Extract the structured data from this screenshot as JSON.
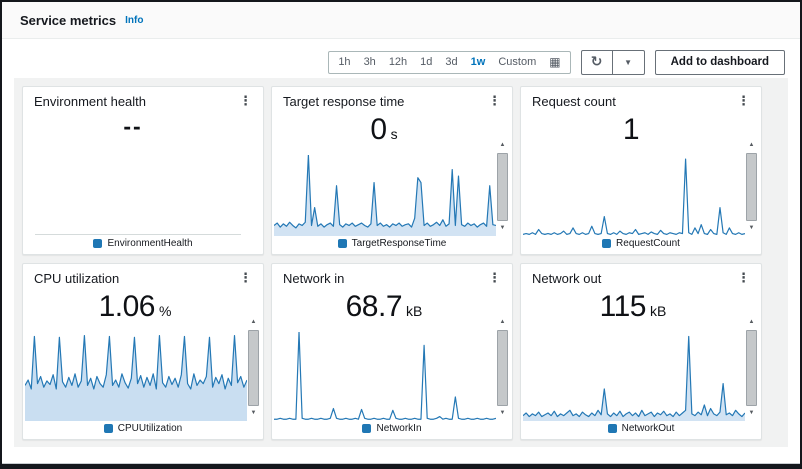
{
  "header": {
    "title": "Service metrics",
    "info_label": "Info"
  },
  "toolbar": {
    "time_ranges": [
      {
        "label": "1h",
        "selected": false
      },
      {
        "label": "3h",
        "selected": false
      },
      {
        "label": "12h",
        "selected": false
      },
      {
        "label": "1d",
        "selected": false
      },
      {
        "label": "3d",
        "selected": false
      },
      {
        "label": "1w",
        "selected": true
      },
      {
        "label": "Custom",
        "selected": false
      }
    ],
    "add_to_dashboard_label": "Add to dashboard"
  },
  "icons": {
    "menu": "⋮",
    "refresh": "↻",
    "caret_down": "▼",
    "calendar": "▦",
    "scroll_up": "▲",
    "scroll_down": "▼"
  },
  "colors": {
    "accent": "#0073bb",
    "chart_line": "#2478b5",
    "chart_fill_light": "#d2e3f3",
    "chart_fill_cpu": "#c9def1",
    "legend_dot": "#1f77b4",
    "panel_bg": "#f1f2f2"
  },
  "cards": [
    {
      "title": "Environment health",
      "value": "--",
      "unit": "",
      "legend": "EnvironmentHealth",
      "chart": {
        "type": "none",
        "series": "EnvironmentHealth",
        "color": "#2478b5",
        "fill": null,
        "values": []
      }
    },
    {
      "title": "Target response time",
      "value": "0",
      "unit": "s",
      "legend": "TargetResponseTime",
      "chart": {
        "type": "area",
        "series": "TargetResponseTime",
        "color": "#2478b5",
        "fill": "#d2e3f3",
        "y_scale": "percent-of-chart-height",
        "values": [
          13,
          16,
          11,
          15,
          12,
          17,
          13,
          10,
          15,
          13,
          17,
          100,
          13,
          35,
          12,
          15,
          11,
          14,
          16,
          12,
          62,
          14,
          11,
          15,
          13,
          16,
          12,
          14,
          16,
          13,
          11,
          15,
          66,
          13,
          16,
          12,
          14,
          11,
          15,
          13,
          16,
          12,
          14,
          15,
          11,
          22,
          72,
          66,
          13,
          16,
          12,
          14,
          17,
          13,
          20,
          12,
          15,
          82,
          13,
          74,
          14,
          12,
          16,
          13,
          15,
          11,
          14,
          16,
          12,
          62,
          14,
          13
        ]
      }
    },
    {
      "title": "Request count",
      "value": "1",
      "unit": "",
      "legend": "RequestCount",
      "chart": {
        "type": "line",
        "series": "RequestCount",
        "color": "#2478b5",
        "fill": null,
        "y_scale": "percent-of-chart-height",
        "values": [
          2,
          3,
          2,
          4,
          2,
          8,
          3,
          2,
          3,
          2,
          4,
          2,
          3,
          6,
          2,
          3,
          10,
          3,
          2,
          4,
          2,
          3,
          12,
          3,
          2,
          3,
          24,
          3,
          2,
          4,
          2,
          6,
          3,
          2,
          4,
          3,
          8,
          2,
          3,
          4,
          2,
          5,
          3,
          2,
          7,
          3,
          2,
          4,
          3,
          2,
          4,
          3,
          95,
          4,
          2,
          10,
          3,
          14,
          3,
          2,
          8,
          3,
          2,
          35,
          4,
          2,
          10,
          3,
          2,
          4,
          2,
          3
        ]
      }
    },
    {
      "title": "CPU utilization",
      "value": "1.06",
      "unit": "%",
      "legend": "CPUUtilization",
      "chart": {
        "type": "area",
        "series": "CPUUtilization",
        "color": "#2478b5",
        "fill": "#c9def1",
        "y_scale": "percent-of-chart-height",
        "values": [
          40,
          46,
          36,
          95,
          42,
          50,
          38,
          45,
          41,
          52,
          36,
          94,
          44,
          38,
          49,
          40,
          53,
          38,
          45,
          96,
          40,
          48,
          36,
          50,
          42,
          38,
          52,
          95,
          40,
          46,
          38,
          53,
          43,
          37,
          48,
          94,
          42,
          51,
          38,
          49,
          40,
          53,
          36,
          96,
          43,
          38,
          50,
          41,
          48,
          38,
          52,
          95,
          42,
          36,
          53,
          40,
          46,
          42,
          50,
          94,
          38,
          49,
          42,
          52,
          36,
          48,
          40,
          96,
          43,
          50,
          38,
          46
        ]
      }
    },
    {
      "title": "Network in",
      "value": "68.7",
      "unit": "kB",
      "legend": "NetworkIn",
      "chart": {
        "type": "line",
        "series": "NetworkIn",
        "color": "#2478b5",
        "fill": null,
        "y_scale": "percent-of-chart-height",
        "values": [
          2,
          2,
          3,
          2,
          2,
          3,
          2,
          2,
          100,
          3,
          2,
          2,
          3,
          2,
          2,
          3,
          2,
          2,
          3,
          14,
          3,
          2,
          2,
          3,
          2,
          2,
          3,
          2,
          13,
          3,
          2,
          2,
          3,
          2,
          2,
          3,
          2,
          2,
          12,
          3,
          2,
          2,
          3,
          2,
          2,
          3,
          2,
          2,
          85,
          3,
          2,
          2,
          3,
          5,
          2,
          3,
          2,
          2,
          27,
          3,
          2,
          2,
          3,
          2,
          2,
          3,
          2,
          2,
          3,
          2,
          2,
          3
        ]
      }
    },
    {
      "title": "Network out",
      "value": "115",
      "unit": "kB",
      "legend": "NetworkOut",
      "chart": {
        "type": "area",
        "series": "NetworkOut",
        "color": "#2478b5",
        "fill": "#d2e3f3",
        "y_scale": "percent-of-chart-height",
        "values": [
          6,
          9,
          5,
          8,
          6,
          10,
          5,
          7,
          9,
          6,
          11,
          5,
          8,
          6,
          9,
          12,
          6,
          8,
          5,
          10,
          7,
          5,
          9,
          6,
          12,
          7,
          36,
          8,
          5,
          9,
          6,
          11,
          5,
          8,
          10,
          6,
          9,
          5,
          12,
          6,
          8,
          10,
          5,
          9,
          7,
          11,
          6,
          8,
          5,
          10,
          6,
          9,
          12,
          95,
          8,
          6,
          10,
          7,
          18,
          6,
          14,
          8,
          6,
          10,
          42,
          7,
          9,
          6,
          12,
          8,
          5,
          9
        ]
      }
    }
  ]
}
